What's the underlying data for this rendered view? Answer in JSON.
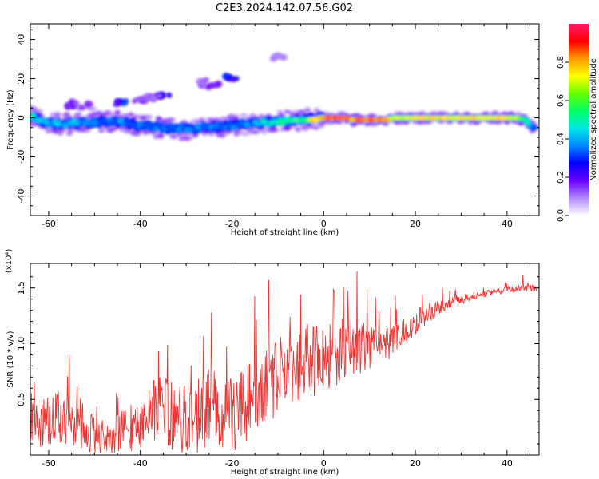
{
  "title": "C2E3.2024.142.07.56.G02",
  "chart_data": [
    {
      "type": "heatmap",
      "xlabel": "Height of straight line (km)",
      "ylabel": "Frequency (Hz)",
      "xlim": [
        -64,
        47
      ],
      "ylim": [
        -50,
        48
      ],
      "xticks": [
        -60,
        -40,
        -20,
        0,
        20,
        40
      ],
      "yticks": [
        -40,
        -20,
        0,
        20,
        40
      ],
      "colorbar": {
        "label": "Normalized spectral amplitude",
        "range": [
          0,
          1
        ],
        "ticks": [
          0.0,
          0.2,
          0.4,
          0.6,
          0.8
        ],
        "tick_labels": [
          "0.0",
          "0.2",
          "0.4",
          "0.6",
          "0.8"
        ],
        "colormap": [
          "#ffffff",
          "#b088ff",
          "#6a00ff",
          "#0000ff",
          "#0088ff",
          "#00e6e6",
          "#00ff66",
          "#66ff00",
          "#ffff00",
          "#ff9900",
          "#ff0000",
          "#ff1a66"
        ]
      },
      "main_band": {
        "x": [
          -64,
          -60,
          -55,
          -50,
          -45,
          -40,
          -35,
          -30,
          -25,
          -20,
          -15,
          -10,
          -5,
          0,
          5,
          6,
          10,
          14,
          15,
          20,
          25,
          30,
          35,
          40,
          42,
          44,
          45.5
        ],
        "y": [
          1,
          -3,
          -3,
          -2,
          -2,
          -4,
          -5,
          -6,
          -5,
          -4,
          -3,
          -2,
          -1,
          0,
          0,
          -1,
          -1,
          -1,
          0,
          0,
          0,
          0,
          0,
          0,
          0,
          -1,
          -5
        ],
        "amp": [
          0.45,
          0.45,
          0.4,
          0.35,
          0.38,
          0.35,
          0.35,
          0.35,
          0.38,
          0.35,
          0.42,
          0.5,
          0.6,
          0.85,
          0.9,
          0.8,
          0.9,
          0.85,
          0.7,
          0.75,
          0.75,
          0.75,
          0.75,
          0.75,
          0.7,
          0.5,
          0.4
        ]
      },
      "secondary_features": [
        {
          "x": -20,
          "y": 20,
          "amp": 0.3
        },
        {
          "x": -24,
          "y": 17,
          "amp": 0.2
        },
        {
          "x": -27,
          "y": 18,
          "amp": 0.15
        },
        {
          "x": -35,
          "y": 12,
          "amp": 0.3
        },
        {
          "x": -44,
          "y": 8,
          "amp": 0.3
        },
        {
          "x": -40,
          "y": 9,
          "amp": 0.2
        },
        {
          "x": -55,
          "y": 7,
          "amp": 0.2
        },
        {
          "x": -52,
          "y": 6,
          "amp": 0.15
        },
        {
          "x": -10,
          "y": 31,
          "amp": 0.1
        },
        {
          "x": -37,
          "y": 11,
          "amp": 0.15
        }
      ]
    },
    {
      "type": "line",
      "xlabel": "Height of straight line (km)",
      "ylabel": "SNR (10 * v/v)",
      "multiplier": "(x10⁴)",
      "xlim": [
        -64,
        47
      ],
      "ylim": [
        0,
        1.72
      ],
      "xticks": [
        -60,
        -40,
        -20,
        0,
        20,
        40
      ],
      "yticks": [
        0.5,
        1.0,
        1.5
      ],
      "ytick_labels": [
        "0.5",
        "1.0",
        "1.5"
      ],
      "color": "#ee3333",
      "series": [
        {
          "x": [
            -64,
            -60,
            -56,
            -52,
            -48,
            -44,
            -40,
            -36,
            -32,
            -28,
            -24,
            -20,
            -16,
            -12,
            -8,
            -4,
            0,
            4,
            8,
            12,
            16,
            20,
            24,
            28,
            32,
            36,
            40,
            44,
            46
          ],
          "y": [
            0.25,
            0.3,
            0.35,
            0.25,
            0.1,
            0.2,
            0.3,
            0.45,
            0.3,
            0.35,
            0.45,
            0.35,
            0.5,
            0.6,
            0.8,
            0.85,
            0.85,
            0.95,
            0.98,
            1.0,
            1.05,
            1.2,
            1.3,
            1.38,
            1.42,
            1.45,
            1.48,
            1.5,
            1.5
          ],
          "noise": [
            0.2,
            0.25,
            0.25,
            0.2,
            0.15,
            0.2,
            0.25,
            0.3,
            0.3,
            0.35,
            0.35,
            0.35,
            0.35,
            0.35,
            0.35,
            0.35,
            0.3,
            0.3,
            0.25,
            0.2,
            0.15,
            0.12,
            0.08,
            0.05,
            0.04,
            0.03,
            0.03,
            0.03,
            0.03
          ]
        }
      ],
      "peaks": [
        {
          "x": -55.5,
          "y": 0.9
        },
        {
          "x": -24.5,
          "y": 1.28
        },
        {
          "x": -12,
          "y": 1.57
        },
        {
          "x": 7.3,
          "y": 1.65
        },
        {
          "x": 2.3,
          "y": 1.47
        },
        {
          "x": -5,
          "y": 1.44
        },
        {
          "x": 43.5,
          "y": 1.62
        }
      ]
    }
  ]
}
